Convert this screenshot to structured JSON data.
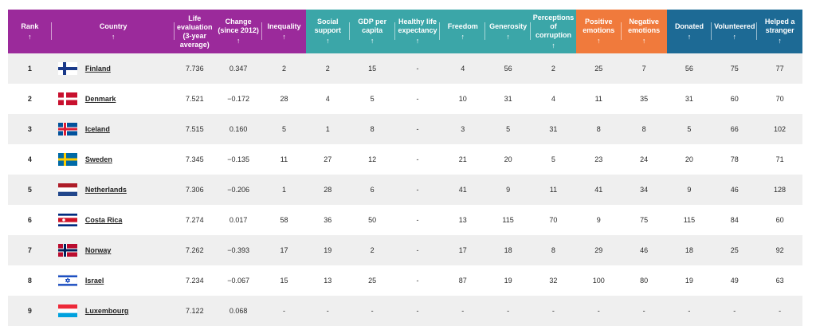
{
  "header": {
    "rank": "Rank",
    "country": "Country",
    "life": "Life evaluation (3-year average)",
    "change": "Change (since 2012)",
    "inequality": "Inequality",
    "social": "Social support",
    "gdp": "GDP per capita",
    "health": "Healthy life expectancy",
    "freedom": "Freedom",
    "generosity": "Generosity",
    "corruption": "Perceptions of corruption",
    "positive": "Positive emotions",
    "negative": "Negative emotions",
    "donated": "Donated",
    "volunteered": "Volunteered",
    "helped": "Helped a stranger",
    "sort_arrow": "↑"
  },
  "group_colors": {
    "purple": "#9b2a9b",
    "teal": "#3ba6a8",
    "orange": "#f07a3c",
    "blue": "#1d6a95"
  },
  "rows": [
    {
      "rank": "1",
      "country": "Finland",
      "life": "7.736",
      "change": "0.347",
      "inequality": "2",
      "social": "2",
      "gdp": "15",
      "health": "-",
      "freedom": "4",
      "generosity": "56",
      "corruption": "2",
      "positive": "25",
      "negative": "7",
      "donated": "56",
      "volunteered": "75",
      "helped": "77",
      "flag": "finland-flag-icon"
    },
    {
      "rank": "2",
      "country": "Denmark",
      "life": "7.521",
      "change": "−0.172",
      "inequality": "28",
      "social": "4",
      "gdp": "5",
      "health": "-",
      "freedom": "10",
      "generosity": "31",
      "corruption": "4",
      "positive": "11",
      "negative": "35",
      "donated": "31",
      "volunteered": "60",
      "helped": "70",
      "flag": "denmark-flag-icon"
    },
    {
      "rank": "3",
      "country": "Iceland",
      "life": "7.515",
      "change": "0.160",
      "inequality": "5",
      "social": "1",
      "gdp": "8",
      "health": "-",
      "freedom": "3",
      "generosity": "5",
      "corruption": "31",
      "positive": "8",
      "negative": "8",
      "donated": "5",
      "volunteered": "66",
      "helped": "102",
      "flag": "iceland-flag-icon"
    },
    {
      "rank": "4",
      "country": "Sweden",
      "life": "7.345",
      "change": "−0.135",
      "inequality": "11",
      "social": "27",
      "gdp": "12",
      "health": "-",
      "freedom": "21",
      "generosity": "20",
      "corruption": "5",
      "positive": "23",
      "negative": "24",
      "donated": "20",
      "volunteered": "78",
      "helped": "71",
      "flag": "sweden-flag-icon"
    },
    {
      "rank": "5",
      "country": "Netherlands",
      "life": "7.306",
      "change": "−0.206",
      "inequality": "1",
      "social": "28",
      "gdp": "6",
      "health": "-",
      "freedom": "41",
      "generosity": "9",
      "corruption": "11",
      "positive": "41",
      "negative": "34",
      "donated": "9",
      "volunteered": "46",
      "helped": "128",
      "flag": "netherlands-flag-icon"
    },
    {
      "rank": "6",
      "country": "Costa Rica",
      "life": "7.274",
      "change": "0.017",
      "inequality": "58",
      "social": "36",
      "gdp": "50",
      "health": "-",
      "freedom": "13",
      "generosity": "115",
      "corruption": "70",
      "positive": "9",
      "negative": "75",
      "donated": "115",
      "volunteered": "84",
      "helped": "60",
      "flag": "costa-rica-flag-icon"
    },
    {
      "rank": "7",
      "country": "Norway",
      "life": "7.262",
      "change": "−0.393",
      "inequality": "17",
      "social": "19",
      "gdp": "2",
      "health": "-",
      "freedom": "17",
      "generosity": "18",
      "corruption": "8",
      "positive": "29",
      "negative": "46",
      "donated": "18",
      "volunteered": "25",
      "helped": "92",
      "flag": "norway-flag-icon"
    },
    {
      "rank": "8",
      "country": "Israel",
      "life": "7.234",
      "change": "−0.067",
      "inequality": "15",
      "social": "13",
      "gdp": "25",
      "health": "-",
      "freedom": "87",
      "generosity": "19",
      "corruption": "32",
      "positive": "100",
      "negative": "80",
      "donated": "19",
      "volunteered": "49",
      "helped": "63",
      "flag": "israel-flag-icon"
    },
    {
      "rank": "9",
      "country": "Luxembourg",
      "life": "7.122",
      "change": "0.068",
      "inequality": "-",
      "social": "-",
      "gdp": "-",
      "health": "-",
      "freedom": "-",
      "generosity": "-",
      "corruption": "-",
      "positive": "-",
      "negative": "-",
      "donated": "-",
      "volunteered": "-",
      "helped": "-",
      "flag": "luxembourg-flag-icon"
    }
  ]
}
